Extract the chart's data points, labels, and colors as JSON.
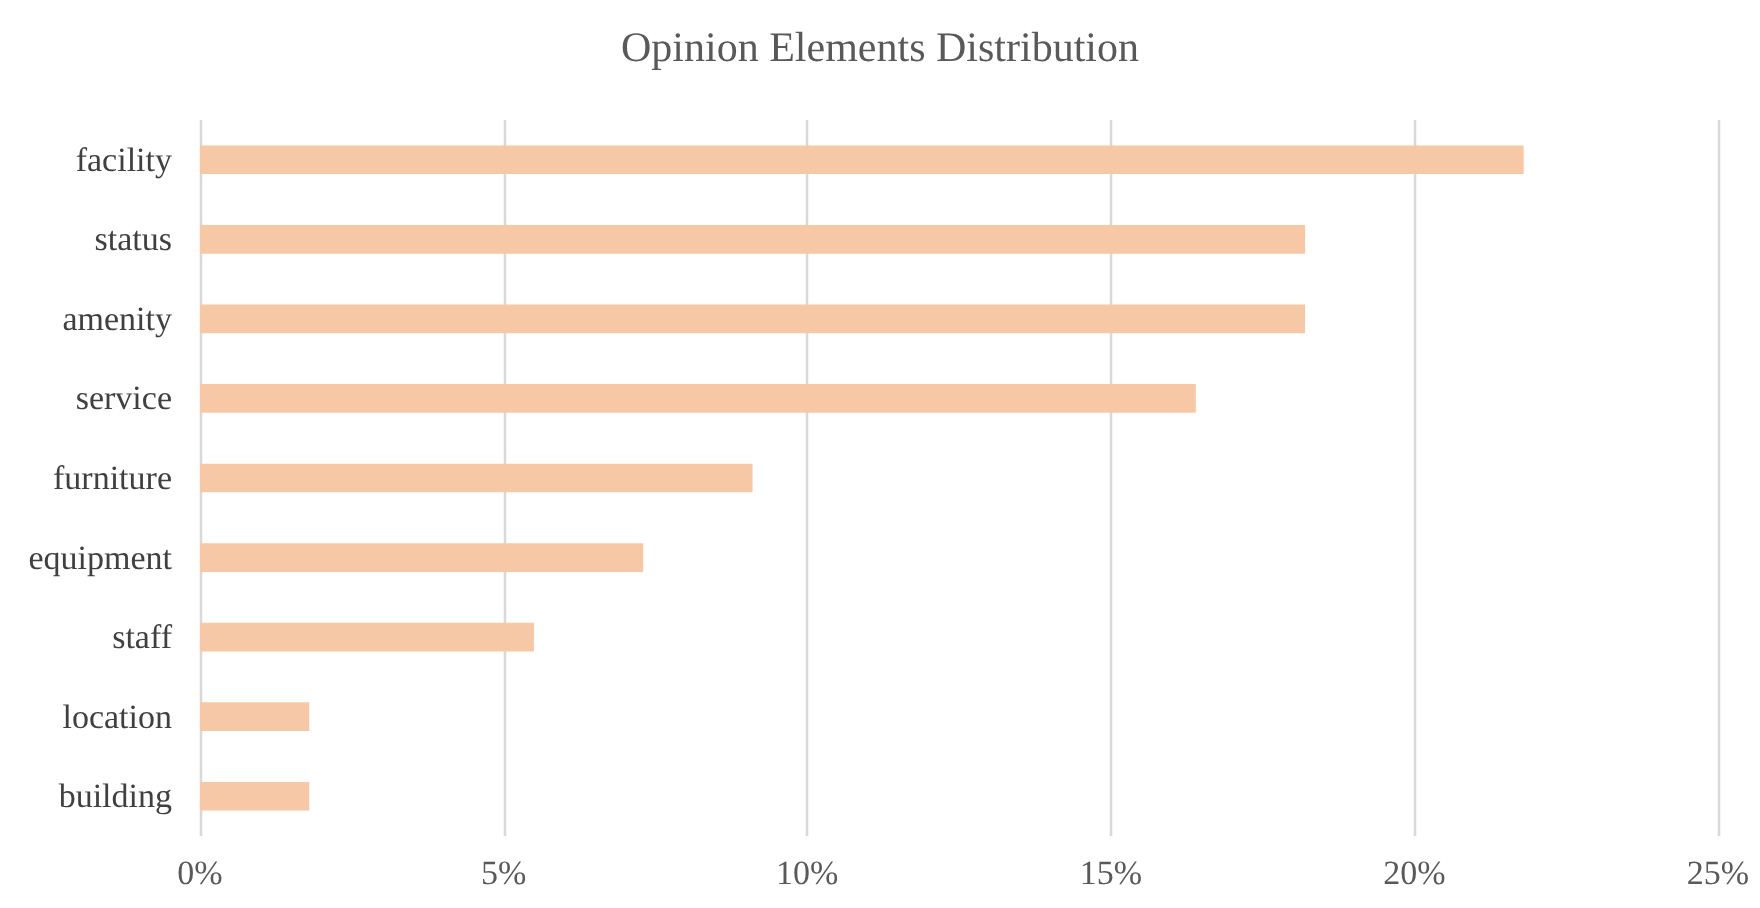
{
  "chart_data": {
    "type": "bar",
    "orientation": "horizontal",
    "title": "Opinion Elements Distribution",
    "categories": [
      "facility",
      "status",
      "amenity",
      "service",
      "furniture",
      "equipment",
      "staff",
      "location",
      "building"
    ],
    "values": [
      21.8,
      18.2,
      18.2,
      16.4,
      9.1,
      7.3,
      5.5,
      1.8,
      1.8
    ],
    "color": "#f7c8a6",
    "xlim": [
      0,
      25
    ],
    "xticks": [
      {
        "value": 0,
        "label": "0%"
      },
      {
        "value": 5,
        "label": "5%"
      },
      {
        "value": 10,
        "label": "10%"
      },
      {
        "value": 15,
        "label": "15%"
      },
      {
        "value": 20,
        "label": "20%"
      },
      {
        "value": 25,
        "label": "25%"
      }
    ],
    "grid": "x"
  }
}
